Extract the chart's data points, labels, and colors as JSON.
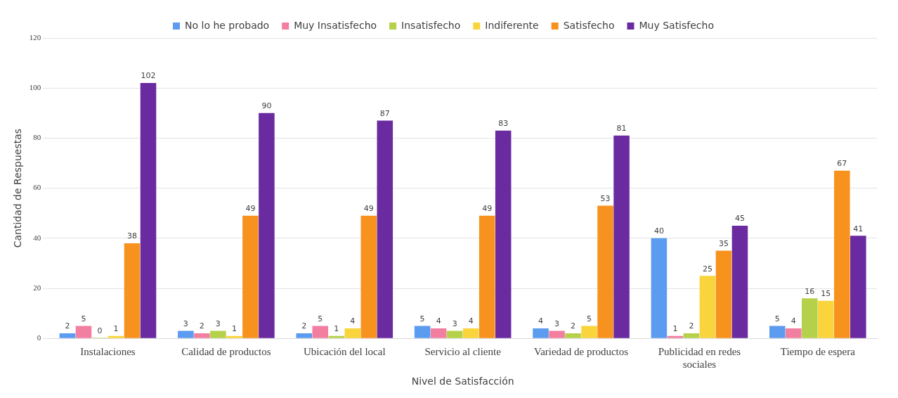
{
  "chart_data": {
    "type": "bar",
    "xlabel": "Nivel de Satisfacción",
    "ylabel": "Cantidad de Respuestas",
    "categories": [
      "Instalaciones",
      "Calidad de productos",
      "Ubicación del local",
      "Servicio al cliente",
      "Variedad de productos",
      "Publicidad en redes sociales",
      "Tiempo de espera"
    ],
    "series": [
      {
        "name": "No lo he probado",
        "color": "#5b9bf0",
        "values": [
          2,
          3,
          2,
          5,
          4,
          40,
          5
        ]
      },
      {
        "name": "Muy Insatisfecho",
        "color": "#f27ea0",
        "values": [
          5,
          2,
          5,
          4,
          3,
          1,
          4
        ]
      },
      {
        "name": "Insatisfecho",
        "color": "#b5d14a",
        "values": [
          0,
          3,
          1,
          3,
          2,
          2,
          16
        ]
      },
      {
        "name": "Indiferente",
        "color": "#f9d43c",
        "values": [
          1,
          1,
          4,
          4,
          5,
          25,
          15
        ]
      },
      {
        "name": "Satisfecho",
        "color": "#f7921e",
        "values": [
          38,
          49,
          49,
          49,
          53,
          35,
          67
        ]
      },
      {
        "name": "Muy Satisfecho",
        "color": "#6a2aa0",
        "values": [
          102,
          90,
          87,
          83,
          81,
          45,
          41
        ]
      }
    ],
    "ylim": [
      0,
      120
    ],
    "yticks": [
      0,
      20,
      40,
      60,
      80,
      100,
      120
    ],
    "grid": "y",
    "legend": "top",
    "data_labels": true
  }
}
